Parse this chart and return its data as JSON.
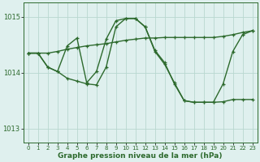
{
  "xlabel": "Graphe pression niveau de la mer (hPa)",
  "hours": [
    0,
    1,
    2,
    3,
    4,
    5,
    6,
    7,
    8,
    9,
    10,
    11,
    12,
    13,
    14,
    15,
    16,
    17,
    18,
    19,
    20,
    21,
    22,
    23
  ],
  "line1": [
    1014.35,
    1014.35,
    1014.35,
    1014.38,
    1014.42,
    1014.45,
    1014.48,
    1014.5,
    1014.52,
    1014.55,
    1014.58,
    1014.6,
    1014.62,
    1014.62,
    1014.63,
    1014.63,
    1014.63,
    1014.63,
    1014.63,
    1014.63,
    1014.65,
    1014.68,
    1014.72,
    1014.75
  ],
  "line2": [
    1014.35,
    1014.35,
    1014.1,
    1014.02,
    1013.9,
    1013.85,
    1013.8,
    1013.78,
    1014.1,
    1014.82,
    1014.97,
    1014.97,
    1014.82,
    1014.4,
    1014.18,
    1013.8,
    1013.5,
    1013.47,
    1013.47,
    1013.47,
    1013.48,
    1013.52,
    1013.52,
    1013.52
  ],
  "line3": [
    1014.35,
    1014.35,
    1014.1,
    1014.02,
    1014.48,
    1014.62,
    1013.82,
    1014.02,
    1014.6,
    1014.93,
    1014.97,
    1014.97,
    1014.82,
    1014.38,
    1014.15,
    1013.82,
    1013.5,
    1013.47,
    1013.47,
    1013.47,
    1013.8,
    1014.38,
    1014.68,
    1014.75
  ],
  "bg_color": "#dff0ee",
  "line_color": "#2d6a2d",
  "grid_color": "#b8d8d0",
  "ylim": [
    1012.75,
    1015.25
  ],
  "yticks": [
    1013,
    1014,
    1015
  ],
  "line_width": 1.0,
  "marker": "+"
}
